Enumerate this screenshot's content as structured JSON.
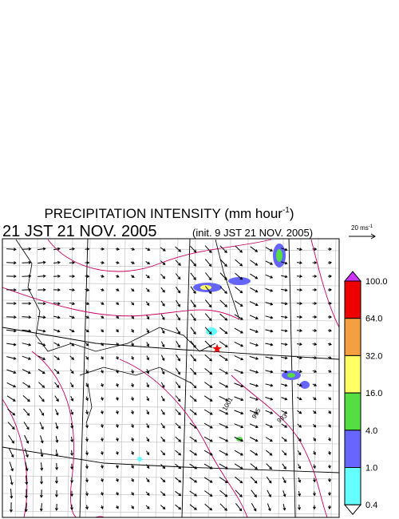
{
  "header": {
    "title": "PRECIPITATION INTENSITY (mm hour",
    "title_unit_exp": "-1",
    "title_close": ")",
    "valid_time": "21 JST 21 NOV. 2005",
    "init_time": "(init. 9 JST 21 NOV. 2005)"
  },
  "scale_arrow": {
    "label": "20 ms",
    "exp": "-1"
  },
  "legend": {
    "levels": [
      "100.0",
      "64.0",
      "32.0",
      "16.0",
      "4.0",
      "1.0",
      "0.4"
    ],
    "colors": [
      "#ee0000",
      "#f4a040",
      "#ffff66",
      "#55dd44",
      "#6666ff",
      "#66ffff"
    ],
    "over_color": "#cc33ff",
    "under_color": "#ffffff"
  },
  "contour_labels": [
    "1001",
    "995",
    "993"
  ]
}
